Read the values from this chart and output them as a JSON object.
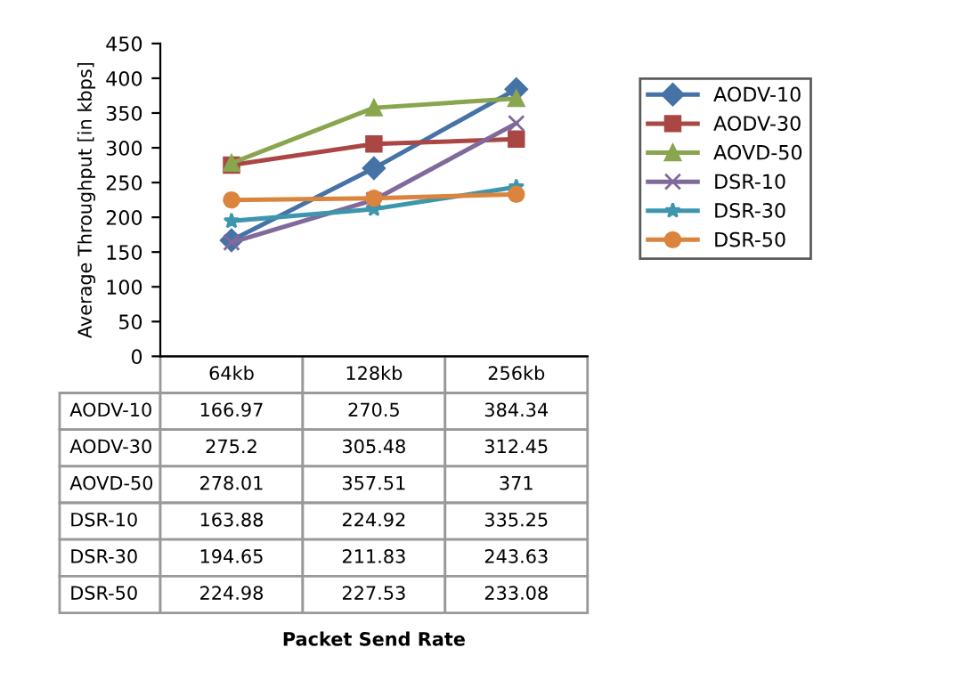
{
  "chart_data": {
    "type": "line",
    "ylabel": "Average Throughput [in kbps]",
    "annotations": [
      "Packet Send Rate"
    ],
    "categories": [
      "64kb",
      "128kb",
      "256kb"
    ],
    "series": [
      {
        "name": "AODV-10",
        "color": "#4572a7",
        "marker": "diamond",
        "values": [
          166.97,
          270.5,
          384.34
        ]
      },
      {
        "name": "AODV-30",
        "color": "#aa4643",
        "marker": "square",
        "values": [
          275.2,
          305.48,
          312.45
        ]
      },
      {
        "name": "AOVD-50",
        "color": "#89a54e",
        "marker": "triangle",
        "values": [
          278.01,
          357.51,
          371
        ]
      },
      {
        "name": "DSR-10",
        "color": "#80699b",
        "marker": "cross",
        "values": [
          163.88,
          224.92,
          335.25
        ]
      },
      {
        "name": "DSR-30",
        "color": "#3d96ae",
        "marker": "star",
        "values": [
          194.65,
          211.83,
          243.63
        ]
      },
      {
        "name": "DSR-50",
        "color": "#db843d",
        "marker": "circle",
        "values": [
          224.98,
          227.53,
          233.08
        ]
      }
    ],
    "ylim": [
      0,
      450
    ],
    "yticks": [
      0,
      50,
      100,
      150,
      200,
      250,
      300,
      350,
      400,
      450
    ],
    "grid": false,
    "legend": "right",
    "line_style": "solid",
    "data_labels": true,
    "tick_labels": "y"
  }
}
